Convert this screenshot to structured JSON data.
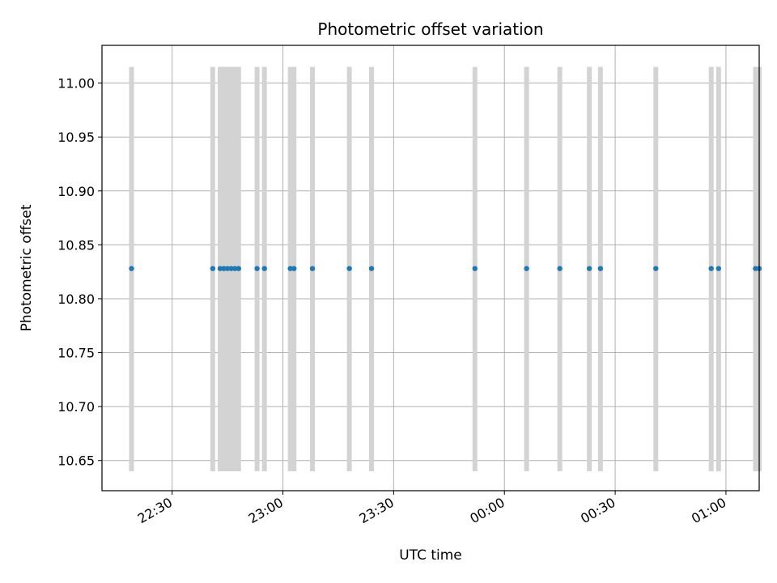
{
  "chart_data": {
    "type": "scatter",
    "title": "Photometric offset variation",
    "xlabel": "UTC time",
    "ylabel": "Photometric offset",
    "xlim": [
      "22:11",
      "01:09"
    ],
    "ylim": [
      10.622,
      11.035
    ],
    "grid": true,
    "x_ticks": [
      "22:30",
      "23:00",
      "23:30",
      "00:00",
      "00:30",
      "01:00"
    ],
    "y_ticks": [
      "10.65",
      "10.70",
      "10.75",
      "10.80",
      "10.85",
      "10.90",
      "10.95",
      "11.00"
    ],
    "series": [
      {
        "values_x": [
          "22:19",
          "22:41",
          "22:43",
          "22:44",
          "22:45",
          "22:46",
          "22:47",
          "22:48",
          "22:53",
          "22:55",
          "23:02",
          "23:03",
          "23:08",
          "23:18",
          "23:24",
          "23:52",
          "00:06",
          "00:15",
          "00:23",
          "00:26",
          "00:41",
          "00:56",
          "00:58",
          "01:08",
          "01:09"
        ],
        "values_y": [
          10.828,
          10.828,
          10.828,
          10.828,
          10.828,
          10.828,
          10.828,
          10.828,
          10.828,
          10.828,
          10.828,
          10.828,
          10.828,
          10.828,
          10.828,
          10.828,
          10.828,
          10.828,
          10.828,
          10.828,
          10.828,
          10.828,
          10.828,
          10.828,
          10.828
        ],
        "error_low": [
          10.64,
          10.64,
          10.64,
          10.64,
          10.64,
          10.64,
          10.64,
          10.64,
          10.64,
          10.64,
          10.64,
          10.64,
          10.64,
          10.64,
          10.64,
          10.64,
          10.64,
          10.64,
          10.64,
          10.64,
          10.64,
          10.64,
          10.64,
          10.64,
          10.64
        ],
        "error_high": [
          11.015,
          11.015,
          11.015,
          11.015,
          11.015,
          11.015,
          11.015,
          11.015,
          11.015,
          11.015,
          11.015,
          11.015,
          11.015,
          11.015,
          11.015,
          11.015,
          11.015,
          11.015,
          11.015,
          11.015,
          11.015,
          11.015,
          11.015,
          11.015,
          11.015
        ],
        "marker_color": "#1f77b4",
        "errorbar_color": "#d3d3d3"
      }
    ],
    "colors": {
      "grid": "#b0b0b0",
      "axes": "#000000",
      "background": "#ffffff"
    }
  }
}
